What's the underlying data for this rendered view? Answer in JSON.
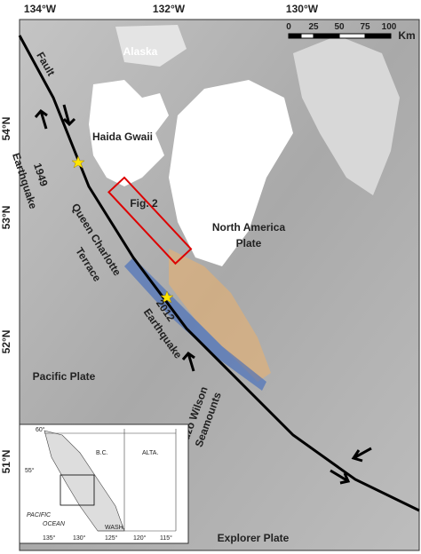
{
  "map": {
    "longitudes": [
      "134°W",
      "132°W",
      "130°W"
    ],
    "latitudes": [
      "54°N",
      "53°N",
      "52°N",
      "51°N"
    ],
    "scale": {
      "ticks": [
        "0",
        "25",
        "50",
        "75",
        "100"
      ],
      "unit": "Km"
    },
    "labels": {
      "alaska": "Alaska",
      "fault": "Fault",
      "haida_gwaii": "Haida Gwaii",
      "eq1949": [
        "1949",
        "Earthquake"
      ],
      "fig2": "Fig. 2",
      "north_america": [
        "North America",
        "Plate"
      ],
      "terrace": [
        "Queen Charlotte",
        "Terrace"
      ],
      "eq2012": [
        "2012",
        "Earthquake"
      ],
      "pacific": "Pacific Plate",
      "tuzo": [
        "Tuzo Wilson",
        "Seamounts"
      ],
      "explorer": "Explorer Plate"
    },
    "inset": {
      "latitudes": [
        "60°",
        "55°"
      ],
      "longitudes": [
        "135°",
        "130°",
        "125°",
        "120°",
        "115°"
      ],
      "labels": [
        "B.C.",
        "ALTA.",
        "PACIFIC",
        "OCEAN",
        "WASH."
      ]
    }
  }
}
